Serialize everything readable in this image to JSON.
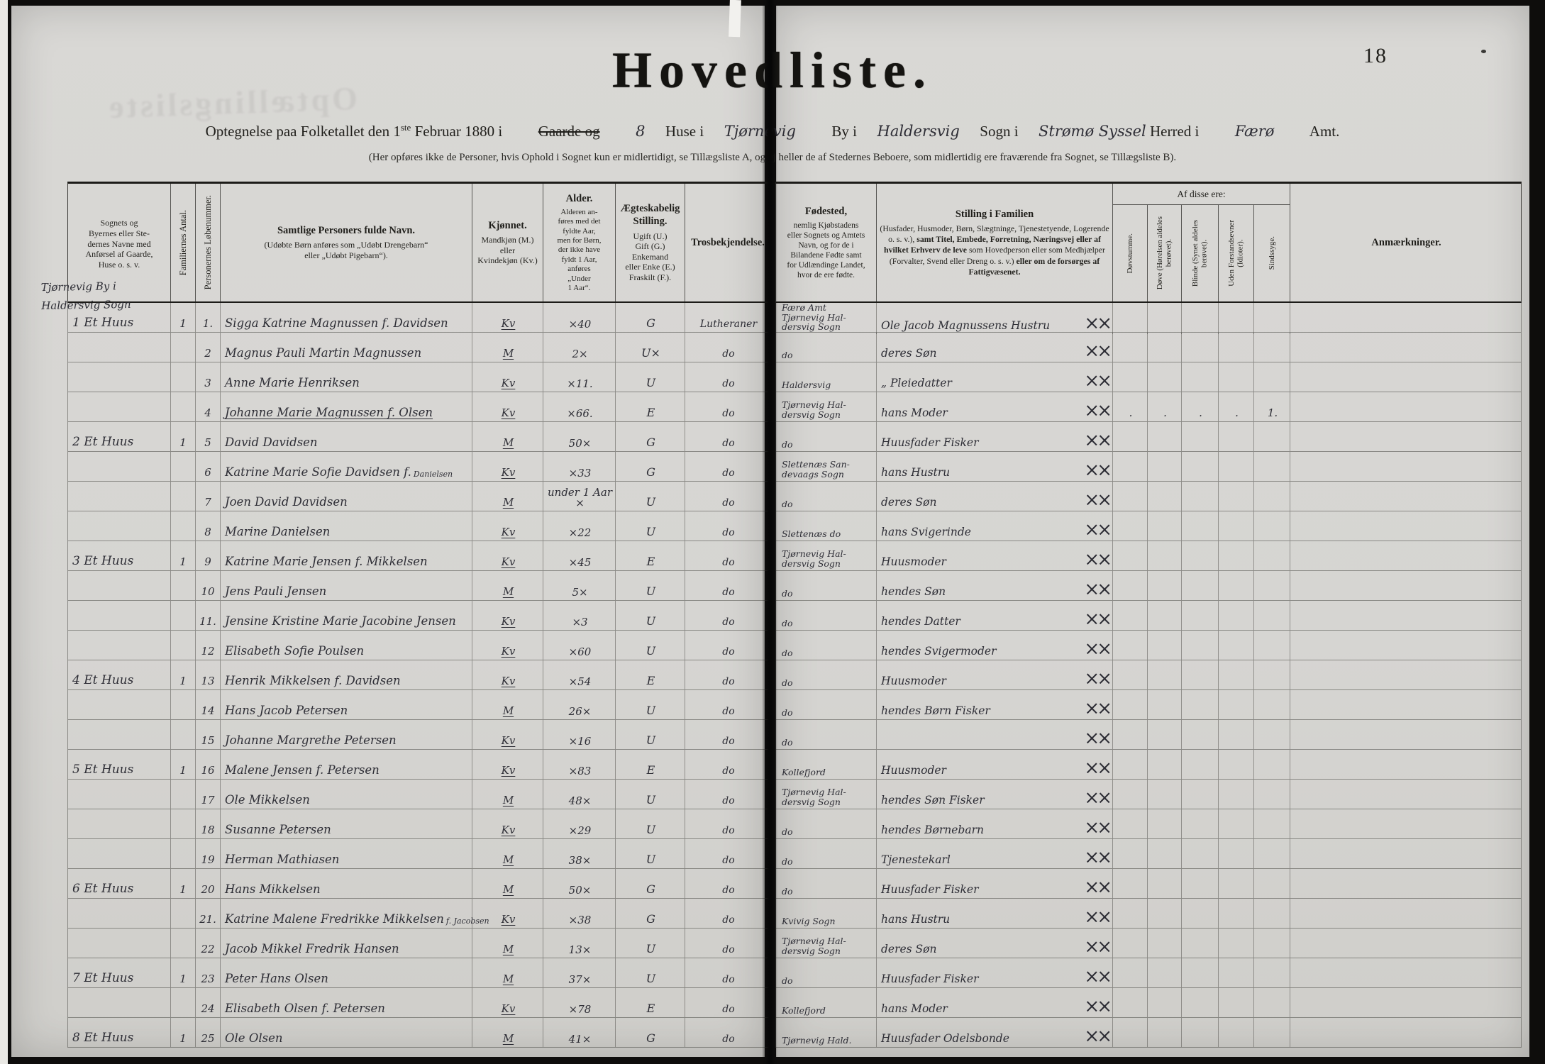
{
  "colors": {
    "paper": "#d7d6d3",
    "ink": "#201f1b",
    "hand": "#2e2e36",
    "dark": "#0e0d0c"
  },
  "spread": {
    "page_number": "18"
  },
  "ghost_text": "Optællingsliste",
  "title": "Hovedliste.",
  "subtitle": {
    "pre": "Optegnelse paa Folketallet den 1",
    "pre_sup": "ste",
    "pre2": " Februar 1880 i",
    "gaarde": "Gaarde og",
    "huse_count": "8",
    "huse": "Huse i",
    "place_town": "Tjørnevig",
    "by_i": "By i",
    "place_parish": "Haldersvig",
    "sogn_i": "Sogn i",
    "place_district": "Strømø Syssel",
    "herred_i": "Herred i",
    "place_county": "Færø",
    "amt": "Amt."
  },
  "form_note": "(Her opføres ikke de Personer, hvis Ophold i Sognet kun er midlertidigt, se Tillægsliste A, og ej heller de af Stedernes Beboere, som midlertidig ere fraværende fra Sognet, se Tillægsliste B).",
  "col1_annotation": "Tjørnevig By i\nHaldersvig Sogn",
  "columns": {
    "place": "Sognets og\nByernes eller Ste-\ndernes Navne med\nAnførsel af Gaarde,\nHuse o. s. v.",
    "fam": "Familiernes Antal.",
    "num": "Personernes Løbenummer.",
    "name_title": "Samtlige Personers fulde Navn.",
    "name_sub": "(Udøbte Børn anføres som „Udøbt Drengebarn“\neller „Udøbt Pigebarn“).",
    "sex_title": "Kjønnet.",
    "sex_sub": "Mandkjøn (M.)\neller\nKvindekjøn (Kv.)",
    "age_title": "Alder.",
    "age_sub": "Alderen an-\nføres med det\nfyldte Aar,\nmen for Børn,\nder ikke have\nfyldt 1 Aar,\nanføres\n„Under\n1 Aar“.",
    "marital_title": "Ægteskabelig\nStilling.",
    "marital_sub": "Ugift (U.)\nGift (G.)\nEnkemand\neller Enke (E.)\nFraskilt (F.).",
    "faith": "Trosbekjendelse.",
    "birth_title": "Fødested,",
    "birth_sub": "nemlig Kjøbstadens\neller Sognets og Amtets\nNavn, og for de i\nBilandene Fødte samt\nfor Udlændinge Landet,\nhvor de ere fødte.",
    "pos_title": "Stilling i Familien",
    "pos_sub_a": "(Husfader, Husmoder, Børn, Slægtninge, Tjenestetyende, Logerende o. s. v.), ",
    "pos_sub_b": "samt Titel, Embede, Forretning, Næringsvej eller af hvilket Erhverv de leve ",
    "pos_sub_c": "som Hovedperson eller som Medhjælper (Forvalter, Svend eller Dreng o. s. v.) ",
    "pos_sub_d": "eller om de forsørges af Fattigvæsenet.",
    "group_title": "Af disse ere:",
    "dis1": "Døvstumme.",
    "dis2": "Døve (Hørelsen aldeles\nberøvet).",
    "dis3": "Blinde (Synet aldeles\nberøvet).",
    "dis4": "Uden Forstandsevner\n(Idioter).",
    "dis5": "Sindssyge.",
    "remarks": "Anmærkninger."
  },
  "rows": [
    {
      "place": "1 Et Huus",
      "fam": "1",
      "num": "1.",
      "name": "Sigga Katrine Magnussen f. Davidsen",
      "note": "",
      "u": false,
      "sex": "Kv",
      "age": "×40",
      "marital": "G",
      "faith": "Lutheraner",
      "birth": "Færø Amt\nTjørnevig Hal-\ndersvig Sogn",
      "pos": "Ole Jacob Magnussens Hustru",
      "marks": "××",
      "d1": "",
      "d2": "",
      "d3": "",
      "d4": "",
      "d5": "",
      "anm": ""
    },
    {
      "place": "",
      "fam": "",
      "num": "2",
      "name": "Magnus Pauli Martin Magnussen",
      "note": "",
      "u": false,
      "sex": "M",
      "age": "2×",
      "marital": "U×",
      "faith": "do",
      "birth": "do",
      "pos": "deres Søn",
      "marks": "××",
      "d1": "",
      "d2": "",
      "d3": "",
      "d4": "",
      "d5": "",
      "anm": ""
    },
    {
      "place": "",
      "fam": "",
      "num": "3",
      "name": "Anne Marie Henriksen",
      "note": "",
      "u": false,
      "sex": "Kv",
      "age": "×11.",
      "marital": "U",
      "faith": "do",
      "birth": "Haldersvig",
      "pos": "„  Pleiedatter",
      "marks": "××",
      "d1": "",
      "d2": "",
      "d3": "",
      "d4": "",
      "d5": "",
      "anm": ""
    },
    {
      "place": "",
      "fam": "",
      "num": "4",
      "name": "Johanne Marie Magnussen f. Olsen",
      "note": "",
      "u": true,
      "sex": "Kv",
      "age": "×66.",
      "marital": "E",
      "faith": "do",
      "birth": "Tjørnevig Hal-\ndersvig Sogn",
      "pos": "hans Moder",
      "marks": "××",
      "d1": ".",
      "d2": ".",
      "d3": ".",
      "d4": ".",
      "d5": "1.",
      "anm": ""
    },
    {
      "place": "2 Et Huus",
      "fam": "1",
      "num": "5",
      "name": "David Davidsen",
      "note": "",
      "u": false,
      "sex": "M",
      "age": "50×",
      "marital": "G",
      "faith": "do",
      "birth": "do",
      "pos": "Huusfader Fisker",
      "marks": "××",
      "d1": "",
      "d2": "",
      "d3": "",
      "d4": "",
      "d5": "",
      "anm": ""
    },
    {
      "place": "",
      "fam": "",
      "num": "6",
      "name": "Katrine Marie Sofie Davidsen f.",
      "note": "Danielsen",
      "u": false,
      "sex": "Kv",
      "age": "×33",
      "marital": "G",
      "faith": "do",
      "birth": "Slettenæs San-\ndevaags Sogn",
      "pos": "hans Hustru",
      "marks": "××",
      "d1": "",
      "d2": "",
      "d3": "",
      "d4": "",
      "d5": "",
      "anm": ""
    },
    {
      "place": "",
      "fam": "",
      "num": "7",
      "name": "Joen David Davidsen",
      "note": "",
      "u": false,
      "sex": "M",
      "age": "under 1 Aar ×",
      "marital": "U",
      "faith": "do",
      "birth": "do",
      "pos": "deres Søn",
      "marks": "××",
      "d1": "",
      "d2": "",
      "d3": "",
      "d4": "",
      "d5": "",
      "anm": ""
    },
    {
      "place": "",
      "fam": "",
      "num": "8",
      "name": "Marine Danielsen",
      "note": "",
      "u": false,
      "sex": "Kv",
      "age": "×22",
      "marital": "U",
      "faith": "do",
      "birth": "Slettenæs do",
      "pos": "hans Svigerinde",
      "marks": "××",
      "d1": "",
      "d2": "",
      "d3": "",
      "d4": "",
      "d5": "",
      "anm": ""
    },
    {
      "place": "3 Et Huus",
      "fam": "1",
      "num": "9",
      "name": "Katrine Marie Jensen f. Mikkelsen",
      "note": "",
      "u": false,
      "sex": "Kv",
      "age": "×45",
      "marital": "E",
      "faith": "do",
      "birth": "Tjørnevig Hal-\ndersvig Sogn",
      "pos": "Huusmoder",
      "marks": "××",
      "d1": "",
      "d2": "",
      "d3": "",
      "d4": "",
      "d5": "",
      "anm": ""
    },
    {
      "place": "",
      "fam": "",
      "num": "10",
      "name": "Jens Pauli Jensen",
      "note": "",
      "u": false,
      "sex": "M",
      "age": "5×",
      "marital": "U",
      "faith": "do",
      "birth": "do",
      "pos": "hendes Søn",
      "marks": "××",
      "d1": "",
      "d2": "",
      "d3": "",
      "d4": "",
      "d5": "",
      "anm": ""
    },
    {
      "place": "",
      "fam": "",
      "num": "11.",
      "name": "Jensine Kristine Marie Jacobine Jensen",
      "note": "",
      "u": false,
      "sex": "Kv",
      "age": "×3",
      "marital": "U",
      "faith": "do",
      "birth": "do",
      "pos": "hendes Datter",
      "marks": "××",
      "d1": "",
      "d2": "",
      "d3": "",
      "d4": "",
      "d5": "",
      "anm": ""
    },
    {
      "place": "",
      "fam": "",
      "num": "12",
      "name": "Elisabeth Sofie Poulsen",
      "note": "",
      "u": false,
      "sex": "Kv",
      "age": "×60",
      "marital": "U",
      "faith": "do",
      "birth": "do",
      "pos": "hendes Svigermoder",
      "marks": "××",
      "d1": "",
      "d2": "",
      "d3": "",
      "d4": "",
      "d5": "",
      "anm": ""
    },
    {
      "place": "4 Et Huus",
      "fam": "1",
      "num": "13",
      "name": "Henrik Mikkelsen f. Davidsen",
      "note": "",
      "u": false,
      "sex": "Kv",
      "age": "×54",
      "marital": "E",
      "faith": "do",
      "birth": "do",
      "pos": "Huusmoder",
      "marks": "××",
      "d1": "",
      "d2": "",
      "d3": "",
      "d4": "",
      "d5": "",
      "anm": ""
    },
    {
      "place": "",
      "fam": "",
      "num": "14",
      "name": "Hans Jacob Petersen",
      "note": "",
      "u": false,
      "sex": "M",
      "age": "26×",
      "marital": "U",
      "faith": "do",
      "birth": "do",
      "pos": "hendes Børn   Fisker",
      "marks": "××",
      "d1": "",
      "d2": "",
      "d3": "",
      "d4": "",
      "d5": "",
      "anm": ""
    },
    {
      "place": "",
      "fam": "",
      "num": "15",
      "name": "Johanne Margrethe Petersen",
      "note": "",
      "u": false,
      "sex": "Kv",
      "age": "×16",
      "marital": "U",
      "faith": "do",
      "birth": "do",
      "pos": "",
      "marks": "××",
      "d1": "",
      "d2": "",
      "d3": "",
      "d4": "",
      "d5": "",
      "anm": ""
    },
    {
      "place": "5 Et Huus",
      "fam": "1",
      "num": "16",
      "name": "Malene Jensen f. Petersen",
      "note": "",
      "u": false,
      "sex": "Kv",
      "age": "×83",
      "marital": "E",
      "faith": "do",
      "birth": "Kollefjord",
      "pos": "Huusmoder",
      "marks": "××",
      "d1": "",
      "d2": "",
      "d3": "",
      "d4": "",
      "d5": "",
      "anm": ""
    },
    {
      "place": "",
      "fam": "",
      "num": "17",
      "name": "Ole Mikkelsen",
      "note": "",
      "u": false,
      "sex": "M",
      "age": "48×",
      "marital": "U",
      "faith": "do",
      "birth": "Tjørnevig Hal-\ndersvig Sogn",
      "pos": "hendes Søn  Fisker",
      "marks": "××",
      "d1": "",
      "d2": "",
      "d3": "",
      "d4": "",
      "d5": "",
      "anm": ""
    },
    {
      "place": "",
      "fam": "",
      "num": "18",
      "name": "Susanne Petersen",
      "note": "",
      "u": false,
      "sex": "Kv",
      "age": "×29",
      "marital": "U",
      "faith": "do",
      "birth": "do",
      "pos": "hendes Børnebarn",
      "marks": "××",
      "d1": "",
      "d2": "",
      "d3": "",
      "d4": "",
      "d5": "",
      "anm": ""
    },
    {
      "place": "",
      "fam": "",
      "num": "19",
      "name": "Herman Mathiasen",
      "note": "",
      "u": false,
      "sex": "M",
      "age": "38×",
      "marital": "U",
      "faith": "do",
      "birth": "do",
      "pos": "Tjenestekarl",
      "marks": "××",
      "d1": "",
      "d2": "",
      "d3": "",
      "d4": "",
      "d5": "",
      "anm": ""
    },
    {
      "place": "6 Et Huus",
      "fam": "1",
      "num": "20",
      "name": "Hans Mikkelsen",
      "note": "",
      "u": false,
      "sex": "M",
      "age": "50×",
      "marital": "G",
      "faith": "do",
      "birth": "do",
      "pos": "Huusfader Fisker",
      "marks": "××",
      "d1": "",
      "d2": "",
      "d3": "",
      "d4": "",
      "d5": "",
      "anm": ""
    },
    {
      "place": "",
      "fam": "",
      "num": "21.",
      "name": "Katrine Malene Fredrikke Mikkelsen",
      "note": "f. Jacobsen",
      "u": false,
      "sex": "Kv",
      "age": "×38",
      "marital": "G",
      "faith": "do",
      "birth": "Kvivig Sogn",
      "pos": "hans Hustru",
      "marks": "××",
      "d1": "",
      "d2": "",
      "d3": "",
      "d4": "",
      "d5": "",
      "anm": ""
    },
    {
      "place": "",
      "fam": "",
      "num": "22",
      "name": "Jacob Mikkel Fredrik Hansen",
      "note": "",
      "u": false,
      "sex": "M",
      "age": "13×",
      "marital": "U",
      "faith": "do",
      "birth": "Tjørnevig Hal-\ndersvig Sogn",
      "pos": "deres Søn",
      "marks": "××",
      "d1": "",
      "d2": "",
      "d3": "",
      "d4": "",
      "d5": "",
      "anm": ""
    },
    {
      "place": "7 Et Huus",
      "fam": "1",
      "num": "23",
      "name": "Peter Hans Olsen",
      "note": "",
      "u": false,
      "sex": "M",
      "age": "37×",
      "marital": "U",
      "faith": "do",
      "birth": "do",
      "pos": "Huusfader  Fisker",
      "marks": "××",
      "d1": "",
      "d2": "",
      "d3": "",
      "d4": "",
      "d5": "",
      "anm": ""
    },
    {
      "place": "",
      "fam": "",
      "num": "24",
      "name": "Elisabeth Olsen f. Petersen",
      "note": "",
      "u": false,
      "sex": "Kv",
      "age": "×78",
      "marital": "E",
      "faith": "do",
      "birth": "Kollefjord",
      "pos": "hans Moder",
      "marks": "××",
      "d1": "",
      "d2": "",
      "d3": "",
      "d4": "",
      "d5": "",
      "anm": ""
    },
    {
      "place": "8 Et Huus",
      "fam": "1",
      "num": "25",
      "name": "Ole Olsen",
      "note": "",
      "u": false,
      "sex": "M",
      "age": "41×",
      "marital": "G",
      "faith": "do",
      "birth": "Tjørnevig Hald.",
      "pos": "Huusfader  Odelsbonde",
      "marks": "××",
      "d1": "",
      "d2": "",
      "d3": "",
      "d4": "",
      "d5": "",
      "anm": ""
    }
  ]
}
